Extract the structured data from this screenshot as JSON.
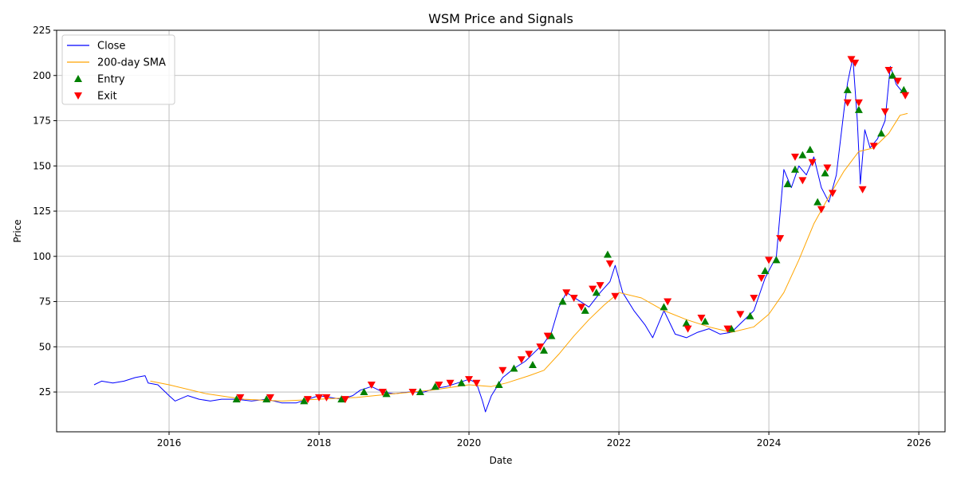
{
  "chart_data": {
    "type": "line",
    "title": "WSM Price and Signals",
    "xlabel": "Date",
    "ylabel": "Price",
    "xlim": [
      2014.5,
      2026.35
    ],
    "ylim": [
      3,
      225
    ],
    "x_ticks": [
      2016,
      2018,
      2020,
      2022,
      2024,
      2026
    ],
    "x_tick_labels": [
      "2016",
      "2018",
      "2020",
      "2022",
      "2024",
      "2026"
    ],
    "y_ticks": [
      25,
      50,
      75,
      100,
      125,
      150,
      175,
      200,
      225
    ],
    "grid": true,
    "legend_position": "top-left",
    "colors": {
      "close": "#0000ff",
      "sma": "#ffa500",
      "entry": "#008000",
      "exit": "#ff0000",
      "grid": "#b0b0b0"
    },
    "series": [
      {
        "name": "Close",
        "style": "line",
        "x": [
          2015.0,
          2015.1,
          2015.25,
          2015.4,
          2015.55,
          2015.68,
          2015.72,
          2015.85,
          2016.0,
          2016.08,
          2016.25,
          2016.4,
          2016.55,
          2016.7,
          2016.9,
          2017.1,
          2017.3,
          2017.5,
          2017.7,
          2017.85,
          2018.0,
          2018.15,
          2018.3,
          2018.45,
          2018.55,
          2018.7,
          2018.85,
          2019.0,
          2019.2,
          2019.4,
          2019.55,
          2019.7,
          2019.85,
          2020.0,
          2020.1,
          2020.18,
          2020.22,
          2020.3,
          2020.45,
          2020.6,
          2020.75,
          2020.9,
          2021.0,
          2021.1,
          2021.2,
          2021.3,
          2021.45,
          2021.6,
          2021.75,
          2021.88,
          2021.95,
          2022.05,
          2022.2,
          2022.35,
          2022.45,
          2022.6,
          2022.75,
          2022.9,
          2023.05,
          2023.2,
          2023.35,
          2023.5,
          2023.65,
          2023.8,
          2023.95,
          2024.1,
          2024.2,
          2024.3,
          2024.4,
          2024.5,
          2024.6,
          2024.7,
          2024.8,
          2024.9,
          2025.0,
          2025.05,
          2025.12,
          2025.18,
          2025.22,
          2025.28,
          2025.35,
          2025.45,
          2025.55,
          2025.62,
          2025.7,
          2025.8
        ],
        "values": [
          29,
          31,
          30,
          31,
          33,
          34,
          30,
          29,
          23,
          20,
          23,
          21,
          20,
          21,
          21,
          20,
          21,
          19,
          19,
          21,
          23,
          22,
          21,
          23,
          26,
          28,
          25,
          24,
          25,
          25,
          27,
          28,
          30,
          32,
          30,
          20,
          14,
          23,
          33,
          38,
          42,
          48,
          52,
          58,
          72,
          80,
          76,
          72,
          80,
          86,
          95,
          80,
          70,
          62,
          55,
          70,
          57,
          55,
          58,
          60,
          57,
          58,
          64,
          70,
          88,
          100,
          148,
          138,
          150,
          145,
          155,
          138,
          130,
          145,
          180,
          196,
          210,
          175,
          140,
          170,
          160,
          165,
          175,
          205,
          195,
          190
        ]
      },
      {
        "name": "200-day SMA",
        "style": "line",
        "x": [
          2015.75,
          2016.0,
          2016.5,
          2017.0,
          2017.5,
          2018.0,
          2018.5,
          2019.0,
          2019.5,
          2020.0,
          2020.3,
          2020.5,
          2020.8,
          2021.0,
          2021.2,
          2021.4,
          2021.6,
          2021.8,
          2022.0,
          2022.3,
          2022.6,
          2022.9,
          2023.2,
          2023.5,
          2023.8,
          2024.0,
          2024.2,
          2024.4,
          2024.6,
          2024.8,
          2025.0,
          2025.2,
          2025.4,
          2025.6,
          2025.75,
          2025.85
        ],
        "values": [
          31,
          29,
          24,
          21,
          20,
          21,
          22,
          24,
          26,
          29,
          28,
          30,
          34,
          37,
          46,
          56,
          65,
          73,
          80,
          77,
          70,
          65,
          61,
          58,
          61,
          68,
          80,
          98,
          118,
          133,
          147,
          158,
          160,
          168,
          178,
          179
        ]
      },
      {
        "name": "Entry",
        "style": "marker-up",
        "x": [
          2016.9,
          2017.3,
          2017.8,
          2018.3,
          2018.6,
          2018.9,
          2019.35,
          2019.55,
          2019.9,
          2020.4,
          2020.6,
          2020.85,
          2021.0,
          2021.1,
          2021.25,
          2021.55,
          2021.7,
          2021.85,
          2022.6,
          2022.9,
          2023.15,
          2023.5,
          2023.75,
          2023.95,
          2024.1,
          2024.25,
          2024.35,
          2024.45,
          2024.55,
          2024.65,
          2024.75,
          2025.05,
          2025.2,
          2025.5,
          2025.65,
          2025.8
        ],
        "values": [
          21,
          21,
          20,
          21,
          25,
          24,
          25,
          28,
          30,
          29,
          38,
          40,
          48,
          56,
          75,
          70,
          80,
          101,
          72,
          63,
          64,
          60,
          67,
          92,
          98,
          140,
          148,
          156,
          159,
          130,
          146,
          192,
          181,
          168,
          200,
          192
        ]
      },
      {
        "name": "Exit",
        "style": "marker-down",
        "x": [
          2016.95,
          2017.35,
          2017.85,
          2018.0,
          2018.1,
          2018.35,
          2018.7,
          2018.85,
          2019.25,
          2019.6,
          2019.75,
          2020.0,
          2020.1,
          2020.45,
          2020.7,
          2020.8,
          2020.95,
          2021.05,
          2021.3,
          2021.4,
          2021.5,
          2021.65,
          2021.75,
          2021.88,
          2021.95,
          2022.65,
          2022.92,
          2023.1,
          2023.45,
          2023.62,
          2023.8,
          2023.9,
          2024.0,
          2024.15,
          2024.35,
          2024.45,
          2024.58,
          2024.7,
          2024.78,
          2024.85,
          2025.05,
          2025.1,
          2025.15,
          2025.2,
          2025.25,
          2025.4,
          2025.55,
          2025.6,
          2025.72,
          2025.82
        ],
        "values": [
          22,
          22,
          21,
          22,
          22,
          21,
          29,
          25,
          25,
          29,
          30,
          32,
          30,
          37,
          43,
          46,
          50,
          56,
          80,
          77,
          72,
          82,
          84,
          96,
          78,
          75,
          60,
          66,
          60,
          68,
          77,
          88,
          98,
          110,
          155,
          142,
          152,
          126,
          149,
          135,
          185,
          209,
          207,
          185,
          137,
          161,
          180,
          203,
          197,
          189
        ]
      }
    ]
  }
}
